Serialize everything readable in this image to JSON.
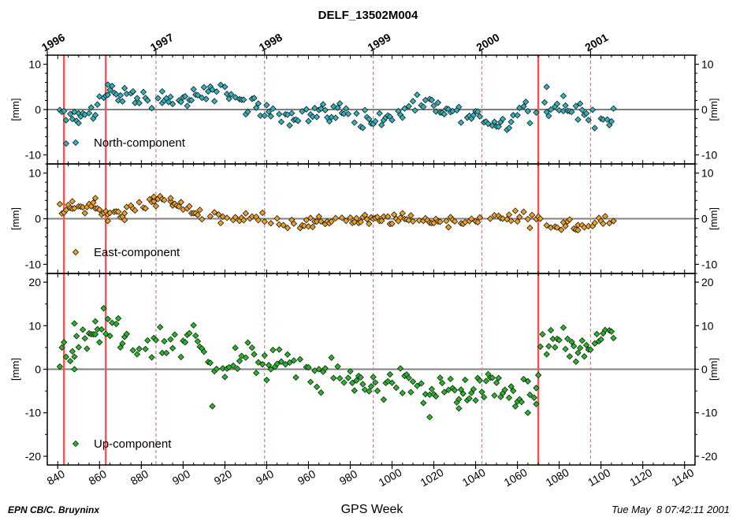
{
  "title": "DELF_13502M004",
  "xlabel": "GPS Week",
  "credit": "EPN CB/C. Bruyninx",
  "timestamp": "Tue May  8 07:42:11 2001",
  "ylabel": "[mm]",
  "colors": {
    "north": "#2bb5c0",
    "east": "#f0a020",
    "up": "#22bb22",
    "event_line": "#ff5050",
    "year_line": "#d08080",
    "zero_line": "#808080"
  },
  "chart_data": {
    "type": "scatter",
    "x_range": [
      835,
      1145
    ],
    "x_ticks": [
      840,
      860,
      880,
      900,
      920,
      940,
      960,
      980,
      1000,
      1020,
      1040,
      1060,
      1080,
      1100,
      1120,
      1140
    ],
    "year_markers": [
      {
        "label": "1996",
        "x": 835
      },
      {
        "label": "1997",
        "x": 887
      },
      {
        "label": "1998",
        "x": 939
      },
      {
        "label": "1999",
        "x": 991
      },
      {
        "label": "2000",
        "x": 1043
      },
      {
        "label": "2001",
        "x": 1095
      }
    ],
    "year_lines": [
      887,
      939,
      991,
      1043,
      1095
    ],
    "event_lines": [
      843,
      863,
      1070
    ],
    "panels": [
      {
        "name": "North-component",
        "ylim": [
          -12,
          12
        ],
        "y_ticks": [
          -10,
          0,
          10
        ],
        "color_key": "north",
        "anchors": [
          [
            842,
            -1.0
          ],
          [
            848,
            -2.0
          ],
          [
            855,
            -0.5
          ],
          [
            860,
            1.5
          ],
          [
            866,
            4.0
          ],
          [
            872,
            3.0
          ],
          [
            880,
            2.5
          ],
          [
            890,
            1.8
          ],
          [
            900,
            2.0
          ],
          [
            912,
            3.0
          ],
          [
            918,
            5.0
          ],
          [
            925,
            2.0
          ],
          [
            935,
            0.2
          ],
          [
            945,
            -0.5
          ],
          [
            955,
            -1.5
          ],
          [
            965,
            -0.5
          ],
          [
            975,
            -0.5
          ],
          [
            985,
            -2.0
          ],
          [
            995,
            -2.5
          ],
          [
            1005,
            -1.0
          ],
          [
            1015,
            1.0
          ],
          [
            1025,
            0.0
          ],
          [
            1035,
            -1.5
          ],
          [
            1045,
            -2.0
          ],
          [
            1055,
            -3.5
          ],
          [
            1062,
            0.5
          ],
          [
            1070,
            0.5
          ],
          [
            1078,
            0.5
          ],
          [
            1085,
            0.2
          ],
          [
            1092,
            -1.0
          ],
          [
            1100,
            -2.0
          ],
          [
            1106,
            -2.3
          ]
        ],
        "noise": 1.3,
        "outliers": [
          [
            844,
            -7.5
          ],
          [
            850,
            -3.0
          ],
          [
            864,
            5.5
          ],
          [
            876,
            4.0
          ],
          [
            890,
            4.0
          ],
          [
            1074,
            5.0
          ],
          [
            1082,
            3.0
          ],
          [
            1066,
            -3.0
          ]
        ]
      },
      {
        "name": "East-component",
        "ylim": [
          -12,
          12
        ],
        "y_ticks": [
          -10,
          0,
          10
        ],
        "color_key": "east",
        "anchors": [
          [
            842,
            2.0
          ],
          [
            850,
            2.5
          ],
          [
            858,
            3.0
          ],
          [
            862,
            1.0
          ],
          [
            868,
            1.0
          ],
          [
            875,
            2.0
          ],
          [
            882,
            3.5
          ],
          [
            890,
            4.0
          ],
          [
            898,
            3.0
          ],
          [
            905,
            1.5
          ],
          [
            912,
            0.5
          ],
          [
            920,
            0.0
          ],
          [
            930,
            0.0
          ],
          [
            940,
            0.0
          ],
          [
            950,
            -1.0
          ],
          [
            960,
            -1.0
          ],
          [
            970,
            -0.5
          ],
          [
            980,
            0.0
          ],
          [
            990,
            -0.3
          ],
          [
            1000,
            -0.2
          ],
          [
            1010,
            0.0
          ],
          [
            1020,
            -0.5
          ],
          [
            1030,
            -0.5
          ],
          [
            1040,
            -0.2
          ],
          [
            1050,
            -0.3
          ],
          [
            1060,
            0.3
          ],
          [
            1068,
            0.5
          ],
          [
            1075,
            -1.5
          ],
          [
            1085,
            -1.8
          ],
          [
            1092,
            -2.0
          ],
          [
            1100,
            -0.5
          ],
          [
            1106,
            -0.5
          ]
        ],
        "noise": 0.8,
        "outliers": [
          [
            858,
            4.5
          ],
          [
            847,
            3.8
          ],
          [
            886,
            4.8
          ],
          [
            894,
            4.5
          ],
          [
            864,
            -0.5
          ],
          [
            872,
            -0.3
          ],
          [
            1066,
            -2.0
          ],
          [
            1089,
            -2.5
          ]
        ]
      },
      {
        "name": "Up-component",
        "ylim": [
          -22,
          22
        ],
        "y_ticks": [
          -20,
          -10,
          0,
          10,
          20
        ],
        "color_key": "up",
        "anchors": [
          [
            842,
            4.0
          ],
          [
            850,
            6.0
          ],
          [
            856,
            7.0
          ],
          [
            862,
            9.0
          ],
          [
            868,
            8.0
          ],
          [
            875,
            5.0
          ],
          [
            882,
            5.0
          ],
          [
            890,
            6.0
          ],
          [
            898,
            6.5
          ],
          [
            905,
            7.5
          ],
          [
            912,
            2.0
          ],
          [
            920,
            1.0
          ],
          [
            930,
            3.0
          ],
          [
            940,
            1.5
          ],
          [
            950,
            0.5
          ],
          [
            960,
            -1.0
          ],
          [
            970,
            -2.0
          ],
          [
            980,
            -3.0
          ],
          [
            990,
            -3.5
          ],
          [
            1000,
            -3.0
          ],
          [
            1010,
            -3.5
          ],
          [
            1020,
            -5.0
          ],
          [
            1030,
            -5.0
          ],
          [
            1040,
            -5.5
          ],
          [
            1050,
            -4.5
          ],
          [
            1060,
            -5.0
          ],
          [
            1068,
            -6.5
          ],
          [
            1072,
            6.0
          ],
          [
            1080,
            6.0
          ],
          [
            1088,
            4.5
          ],
          [
            1095,
            4.0
          ],
          [
            1100,
            7.0
          ],
          [
            1106,
            8.0
          ]
        ],
        "noise": 2.3,
        "outliers": [
          [
            862,
            14.0
          ],
          [
            858,
            11.0
          ],
          [
            848,
            10.5
          ],
          [
            914,
            -8.5
          ],
          [
            1018,
            -11.0
          ],
          [
            1065,
            -10.0
          ],
          [
            1069,
            -8.0
          ],
          [
            1032,
            -9.0
          ],
          [
            848,
            0.0
          ],
          [
            870,
            5.0
          ]
        ]
      }
    ]
  }
}
